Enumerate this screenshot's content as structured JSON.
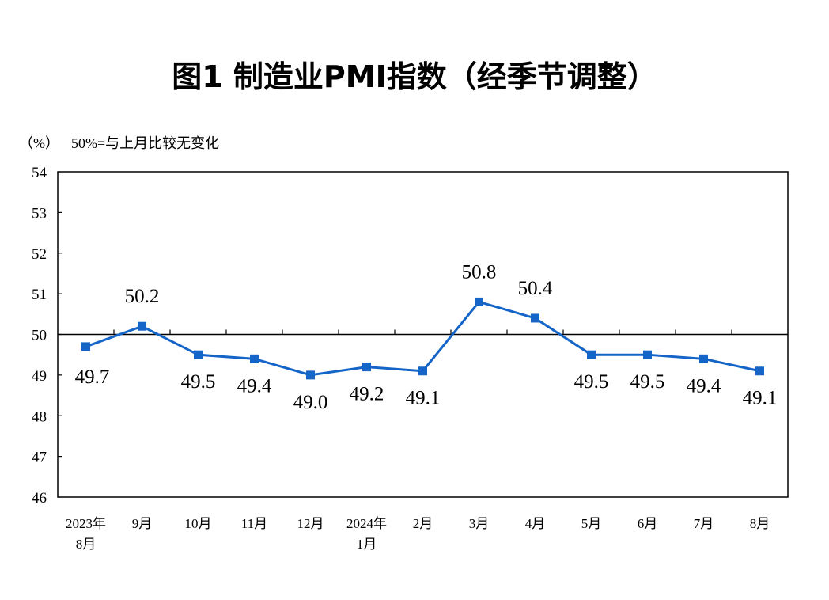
{
  "chart_data": {
    "type": "line",
    "title": "图1  制造业PMI指数（经季节调整）",
    "ylabel": "（%）",
    "annotation": "50%=与上月比较无变化",
    "ylim": [
      46,
      54
    ],
    "yticks": [
      46,
      47,
      48,
      49,
      50,
      51,
      52,
      53,
      54
    ],
    "reference_line": 50,
    "grid": false,
    "categories": [
      [
        "2023年",
        "8月"
      ],
      [
        "9月"
      ],
      [
        "10月"
      ],
      [
        "11月"
      ],
      [
        "12月"
      ],
      [
        "2024年",
        "1月"
      ],
      [
        "2月"
      ],
      [
        "3月"
      ],
      [
        "4月"
      ],
      [
        "5月"
      ],
      [
        "6月"
      ],
      [
        "7月"
      ],
      [
        "8月"
      ]
    ],
    "series": [
      {
        "name": "制造业PMI",
        "color": "#1565c8",
        "values": [
          49.7,
          50.2,
          49.5,
          49.4,
          49.0,
          49.2,
          49.1,
          50.8,
          50.4,
          49.5,
          49.5,
          49.4,
          49.1
        ],
        "labels": [
          "49.7",
          "50.2",
          "49.5",
          "49.4",
          "49.0",
          "49.2",
          "49.1",
          "50.8",
          "50.4",
          "49.5",
          "49.5",
          "49.4",
          "49.1"
        ]
      }
    ]
  }
}
